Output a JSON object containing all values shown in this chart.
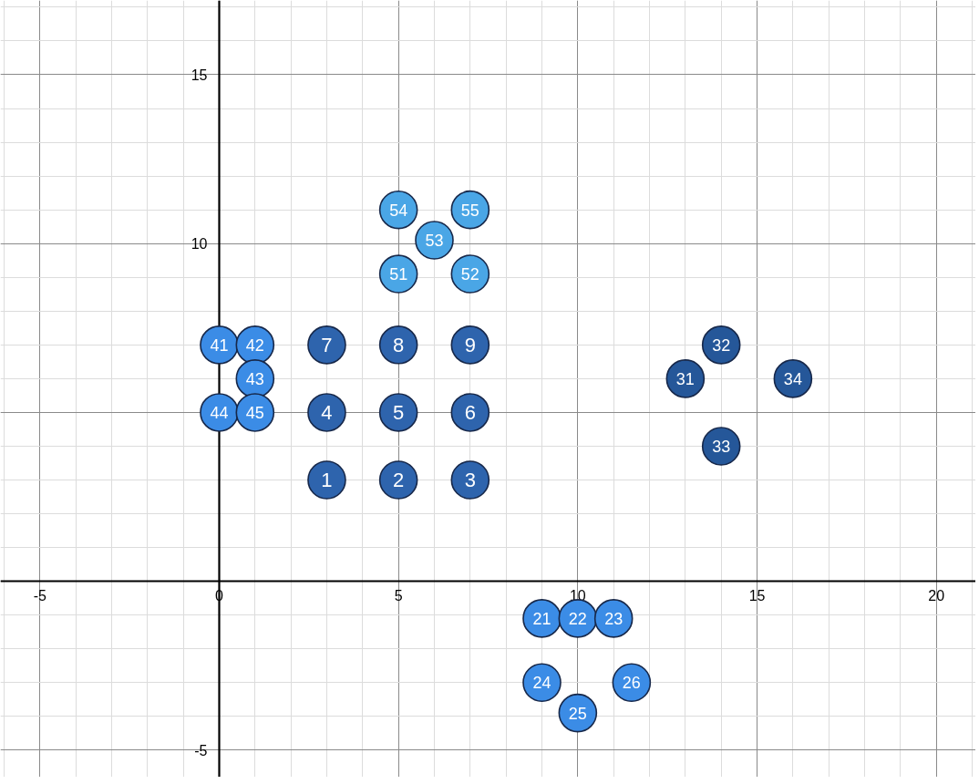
{
  "chart_data": {
    "type": "scatter",
    "xlim": [
      -6.1,
      21.1
    ],
    "ylim": [
      -5.8,
      17.2
    ],
    "xticks": [
      -5,
      0,
      5,
      10,
      15,
      20
    ],
    "yticks": [
      -5,
      {
        "value": 0,
        "label": null
      },
      {
        "value": 5,
        "label": null
      },
      10,
      15
    ],
    "grid": true,
    "marker": "circle",
    "series": [
      {
        "color": "#2e64ad",
        "x": [
          3,
          5,
          3,
          7,
          5,
          3,
          7,
          5,
          7
        ],
        "values": [
          3,
          3,
          7,
          3,
          7,
          5,
          7,
          5,
          5
        ]
      },
      {
        "color": "#3b8ce6",
        "x": [
          9,
          9,
          10,
          10,
          11,
          11.5
        ],
        "values": [
          -1.1,
          -3,
          -1.1,
          -3.9,
          -1.1,
          -3
        ]
      },
      {
        "color": "#255799",
        "x": [
          13,
          14,
          14,
          16
        ],
        "values": [
          6,
          7,
          4,
          6
        ]
      },
      {
        "color": "#3b8ce6",
        "x": [
          0,
          0,
          1,
          1,
          1
        ],
        "values": [
          7,
          5,
          7,
          6,
          5
        ]
      },
      {
        "color": "#4aa6e6",
        "x": [
          5,
          5,
          6,
          7,
          7
        ],
        "values": [
          9.1,
          11,
          10.1,
          9.1,
          11
        ]
      }
    ],
    "annotations": [
      {
        "text": "1",
        "x": 3,
        "y": 3
      },
      {
        "text": "2",
        "x": 5,
        "y": 3
      },
      {
        "text": "7",
        "x": 3,
        "y": 7
      },
      {
        "text": "3",
        "x": 7,
        "y": 3
      },
      {
        "text": "8",
        "x": 5,
        "y": 7
      },
      {
        "text": "4",
        "x": 3,
        "y": 5
      },
      {
        "text": "9",
        "x": 7,
        "y": 7
      },
      {
        "text": "5",
        "x": 5,
        "y": 5
      },
      {
        "text": "6",
        "x": 7,
        "y": 5
      },
      {
        "text": "21",
        "x": 9,
        "y": -1.1
      },
      {
        "text": "24",
        "x": 9,
        "y": -3
      },
      {
        "text": "22",
        "x": 10,
        "y": -1.1
      },
      {
        "text": "25",
        "x": 10,
        "y": -3.9
      },
      {
        "text": "23",
        "x": 11,
        "y": -1.1
      },
      {
        "text": "26",
        "x": 11.5,
        "y": -3
      },
      {
        "text": "31",
        "x": 13,
        "y": 6
      },
      {
        "text": "32",
        "x": 14,
        "y": 7
      },
      {
        "text": "33",
        "x": 14,
        "y": 4
      },
      {
        "text": "34",
        "x": 16,
        "y": 6
      },
      {
        "text": "41",
        "x": 0,
        "y": 7
      },
      {
        "text": "44",
        "x": 0,
        "y": 5
      },
      {
        "text": "42",
        "x": 1,
        "y": 7
      },
      {
        "text": "43",
        "x": 1,
        "y": 6
      },
      {
        "text": "45",
        "x": 1,
        "y": 5
      },
      {
        "text": "51",
        "x": 5,
        "y": 9.1
      },
      {
        "text": "54",
        "x": 5,
        "y": 11
      },
      {
        "text": "53",
        "x": 6,
        "y": 10.1
      },
      {
        "text": "52",
        "x": 7,
        "y": 9.1
      },
      {
        "text": "55",
        "x": 7,
        "y": 11
      }
    ]
  }
}
